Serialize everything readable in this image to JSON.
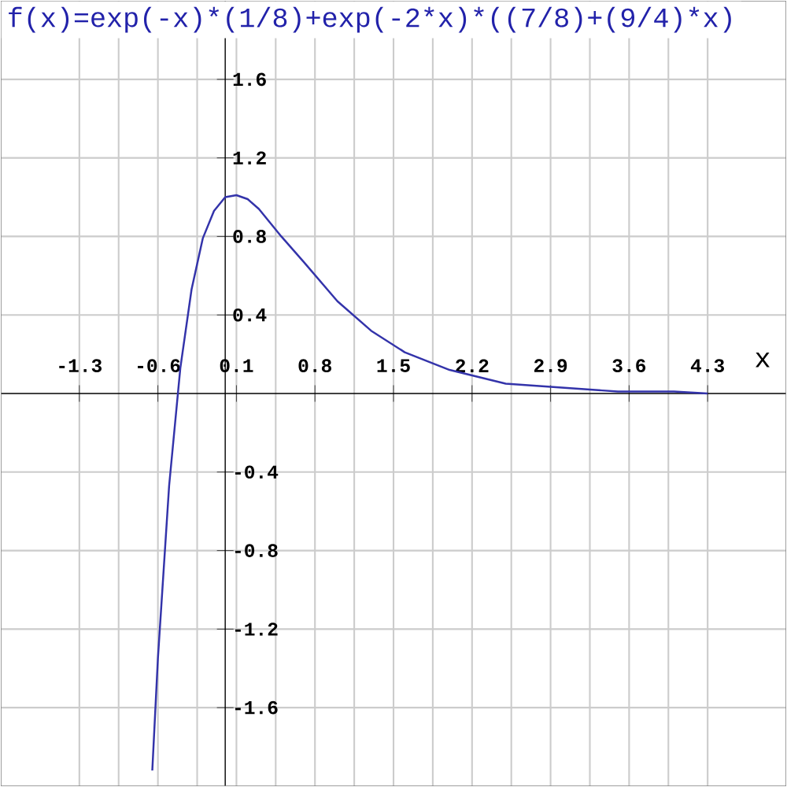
{
  "chart_data": {
    "type": "line",
    "title": "f(x)=exp(-x)*(1/8)+exp(-2*x)*((7/8)+(9/4)*x)",
    "xlabel": "x",
    "x": [
      -0.65,
      -0.6,
      -0.5,
      -0.4,
      -0.3,
      -0.2,
      -0.1,
      0,
      0.1,
      0.2,
      0.3,
      0.5,
      0.7,
      1,
      1.3,
      1.6,
      2,
      2.5,
      3,
      3.5,
      4,
      4.3
    ],
    "values": [
      -1.92,
      -1.35,
      -0.47,
      0.13,
      0.53,
      0.79,
      0.93,
      1.0,
      1.01,
      0.99,
      0.94,
      0.8,
      0.67,
      0.47,
      0.32,
      0.21,
      0.12,
      0.05,
      0.03,
      0.01,
      0.01,
      0.0
    ],
    "color": "#3333aa",
    "xlim": [
      -2,
      5
    ],
    "ylim": [
      -2,
      2
    ],
    "xticks": [
      -1.3,
      -0.6,
      0.1,
      0.8,
      1.5,
      2.2,
      2.9,
      3.6,
      4.3
    ],
    "yticks": [
      -1.6,
      -1.2,
      -0.8,
      -0.4,
      0.4,
      0.8,
      1.2,
      1.6
    ],
    "grid": true
  }
}
